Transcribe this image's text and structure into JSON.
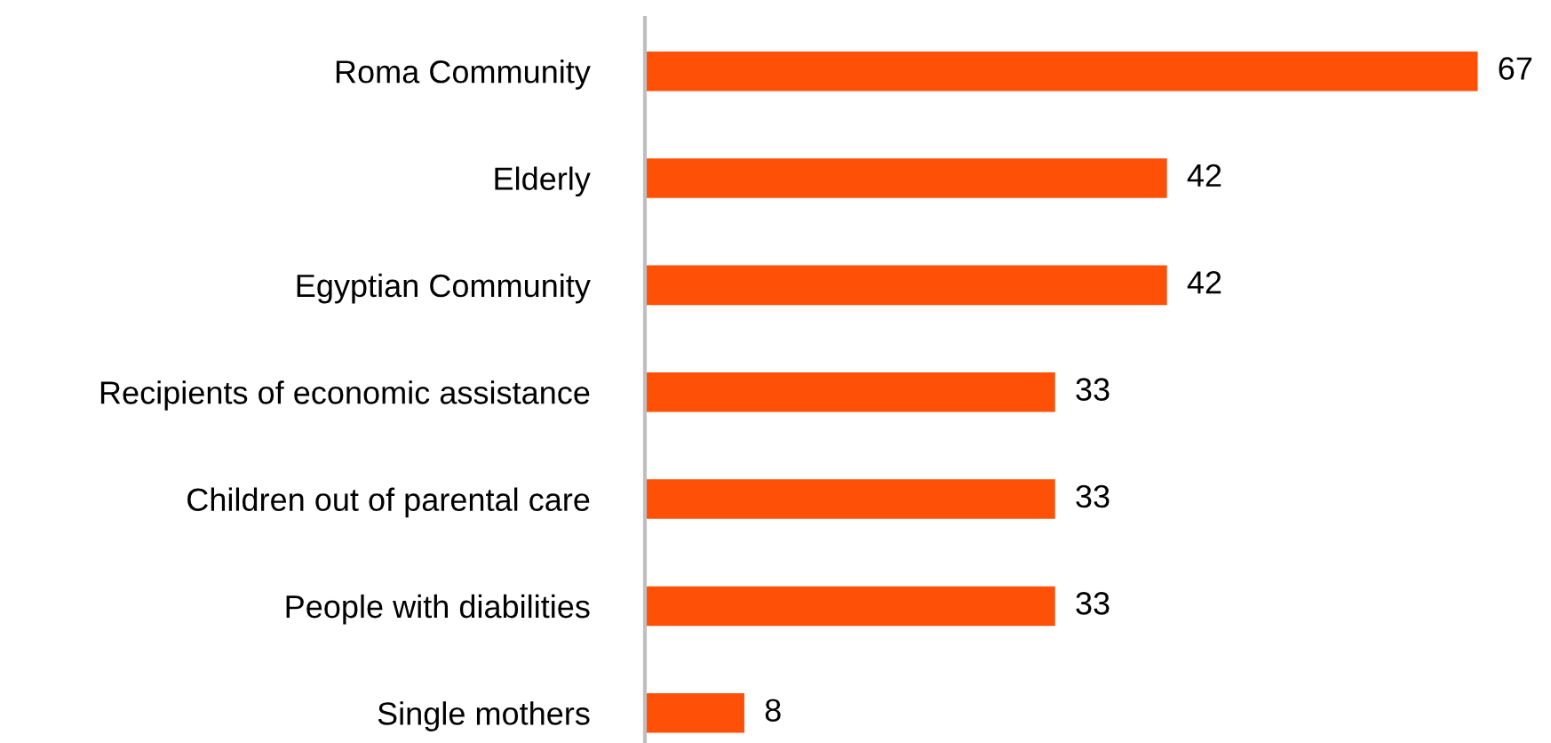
{
  "chart_data": {
    "type": "bar",
    "orientation": "horizontal",
    "categories": [
      "Roma Community",
      "Elderly",
      "Egyptian Community",
      "Recipients of economic assistance",
      "Children out of parental care",
      "People with diabilities",
      "Single mothers"
    ],
    "values": [
      67,
      42,
      42,
      33,
      33,
      33,
      8
    ],
    "color": "#ff5008",
    "data_labels": true,
    "grid": false,
    "legend": false
  }
}
